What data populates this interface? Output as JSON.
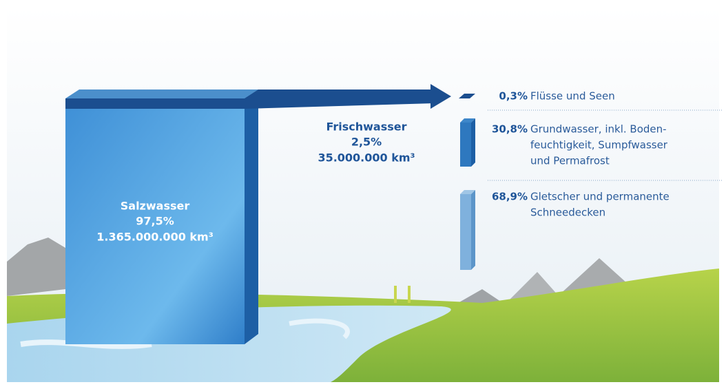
{
  "salt_water": {
    "name": "Salzwasser",
    "percent": "97,5%",
    "volume": "1.365.000.000 km³"
  },
  "fresh_water": {
    "name": "Frischwasser",
    "percent": "2,5%",
    "volume": "35.000.000 km³"
  },
  "breakdown": [
    {
      "percent": "0,3%",
      "lines": [
        "Flüsse und Seen"
      ]
    },
    {
      "percent": "30,8%",
      "lines": [
        "Grundwasser, inkl. Boden-",
        "feuchtigkeit, Sumpfwasser",
        "und Permafrost"
      ]
    },
    {
      "percent": "68,9%",
      "lines": [
        "Gletscher und permanente",
        "Schneedecken"
      ]
    }
  ]
}
